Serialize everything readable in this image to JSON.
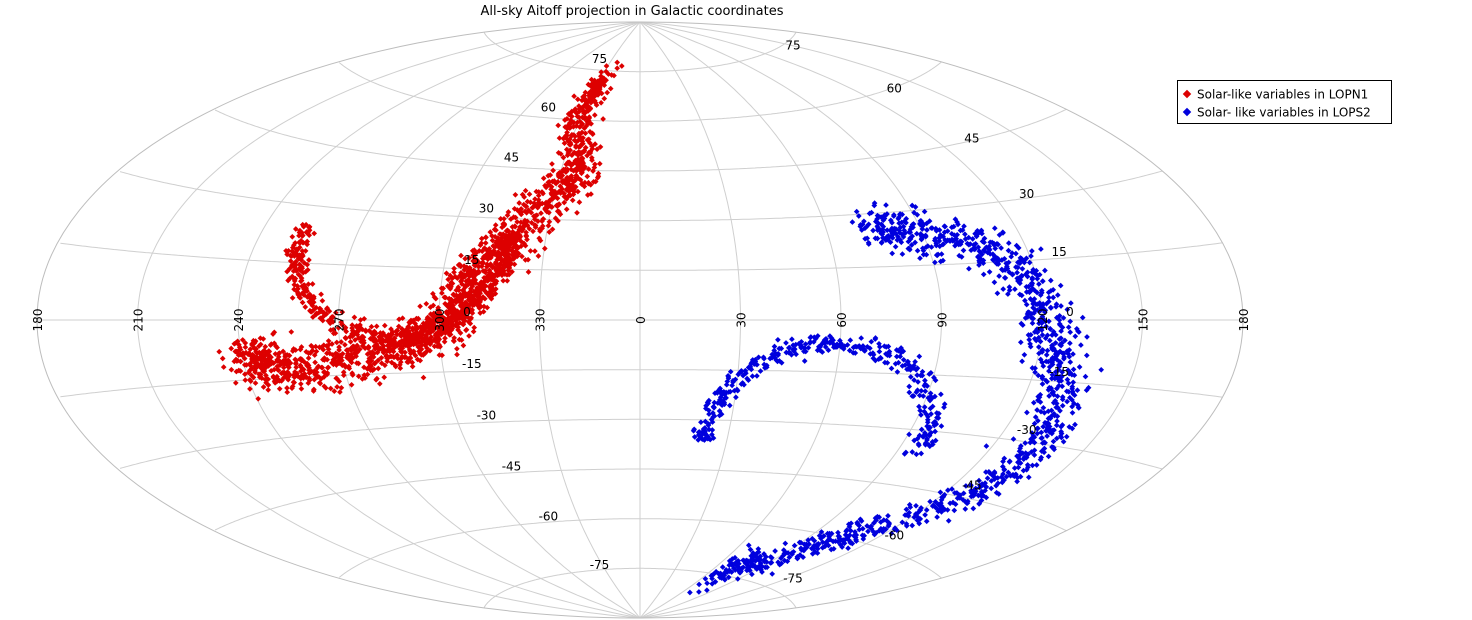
{
  "chart_data": {
    "type": "scatter",
    "title": "All-sky Aitoff projection in Galactic coordinates",
    "projection": "aitoff",
    "coordinates": "galactic",
    "longitude_ticks": [
      "180",
      "210",
      "240",
      "270",
      "300",
      "330",
      "0",
      "30",
      "60",
      "90",
      "120",
      "150",
      "180"
    ],
    "latitude_ticks_west": [
      "75",
      "60",
      "45",
      "30",
      "15",
      "0",
      "-15",
      "-30",
      "-45",
      "-60",
      "-75"
    ],
    "latitude_ticks_east": [
      "75",
      "60",
      "45",
      "30",
      "15",
      "0",
      "-15",
      "-30",
      "-45",
      "-60",
      "-75"
    ],
    "grid": true,
    "legend_position": "top-right",
    "series": [
      {
        "name": "Solar-like variables in LOPN1",
        "color": "#dd0000",
        "marker": "diamond",
        "path": [
          [
            27,
            73
          ],
          [
            32,
            60
          ],
          [
            22,
            48
          ],
          [
            28,
            38
          ],
          [
            40,
            26
          ],
          [
            46,
            18
          ],
          [
            52,
            10
          ],
          [
            56,
            3
          ],
          [
            62,
            -4
          ],
          [
            72,
            -8
          ],
          [
            85,
            -10
          ],
          [
            100,
            -13
          ],
          [
            112,
            -12
          ],
          [
            120,
            -8
          ]
        ],
        "ring_center": [
          74,
          25
        ],
        "ring_radius": 30,
        "ring_range_deg": [
          180,
          360
        ],
        "count_approx": 2200
      },
      {
        "name": "Solar- like variables in LOPS2",
        "color": "#0000dd",
        "marker": "diamond",
        "path": [
          [
            286,
            26
          ],
          [
            278,
            25
          ],
          [
            268,
            23
          ],
          [
            255,
            20
          ],
          [
            245,
            14
          ],
          [
            240,
            5
          ],
          [
            236,
            -5
          ],
          [
            232,
            -12
          ],
          [
            228,
            -22
          ],
          [
            225,
            -30
          ],
          [
            228,
            -40
          ],
          [
            238,
            -50
          ],
          [
            250,
            -58
          ],
          [
            265,
            -66
          ],
          [
            280,
            -72
          ],
          [
            295,
            -73
          ]
        ],
        "ring_center": [
          301,
          -37
        ],
        "ring_radius": 30,
        "ring_range_deg": [
          0,
          180
        ],
        "count_approx": 1500
      }
    ]
  }
}
